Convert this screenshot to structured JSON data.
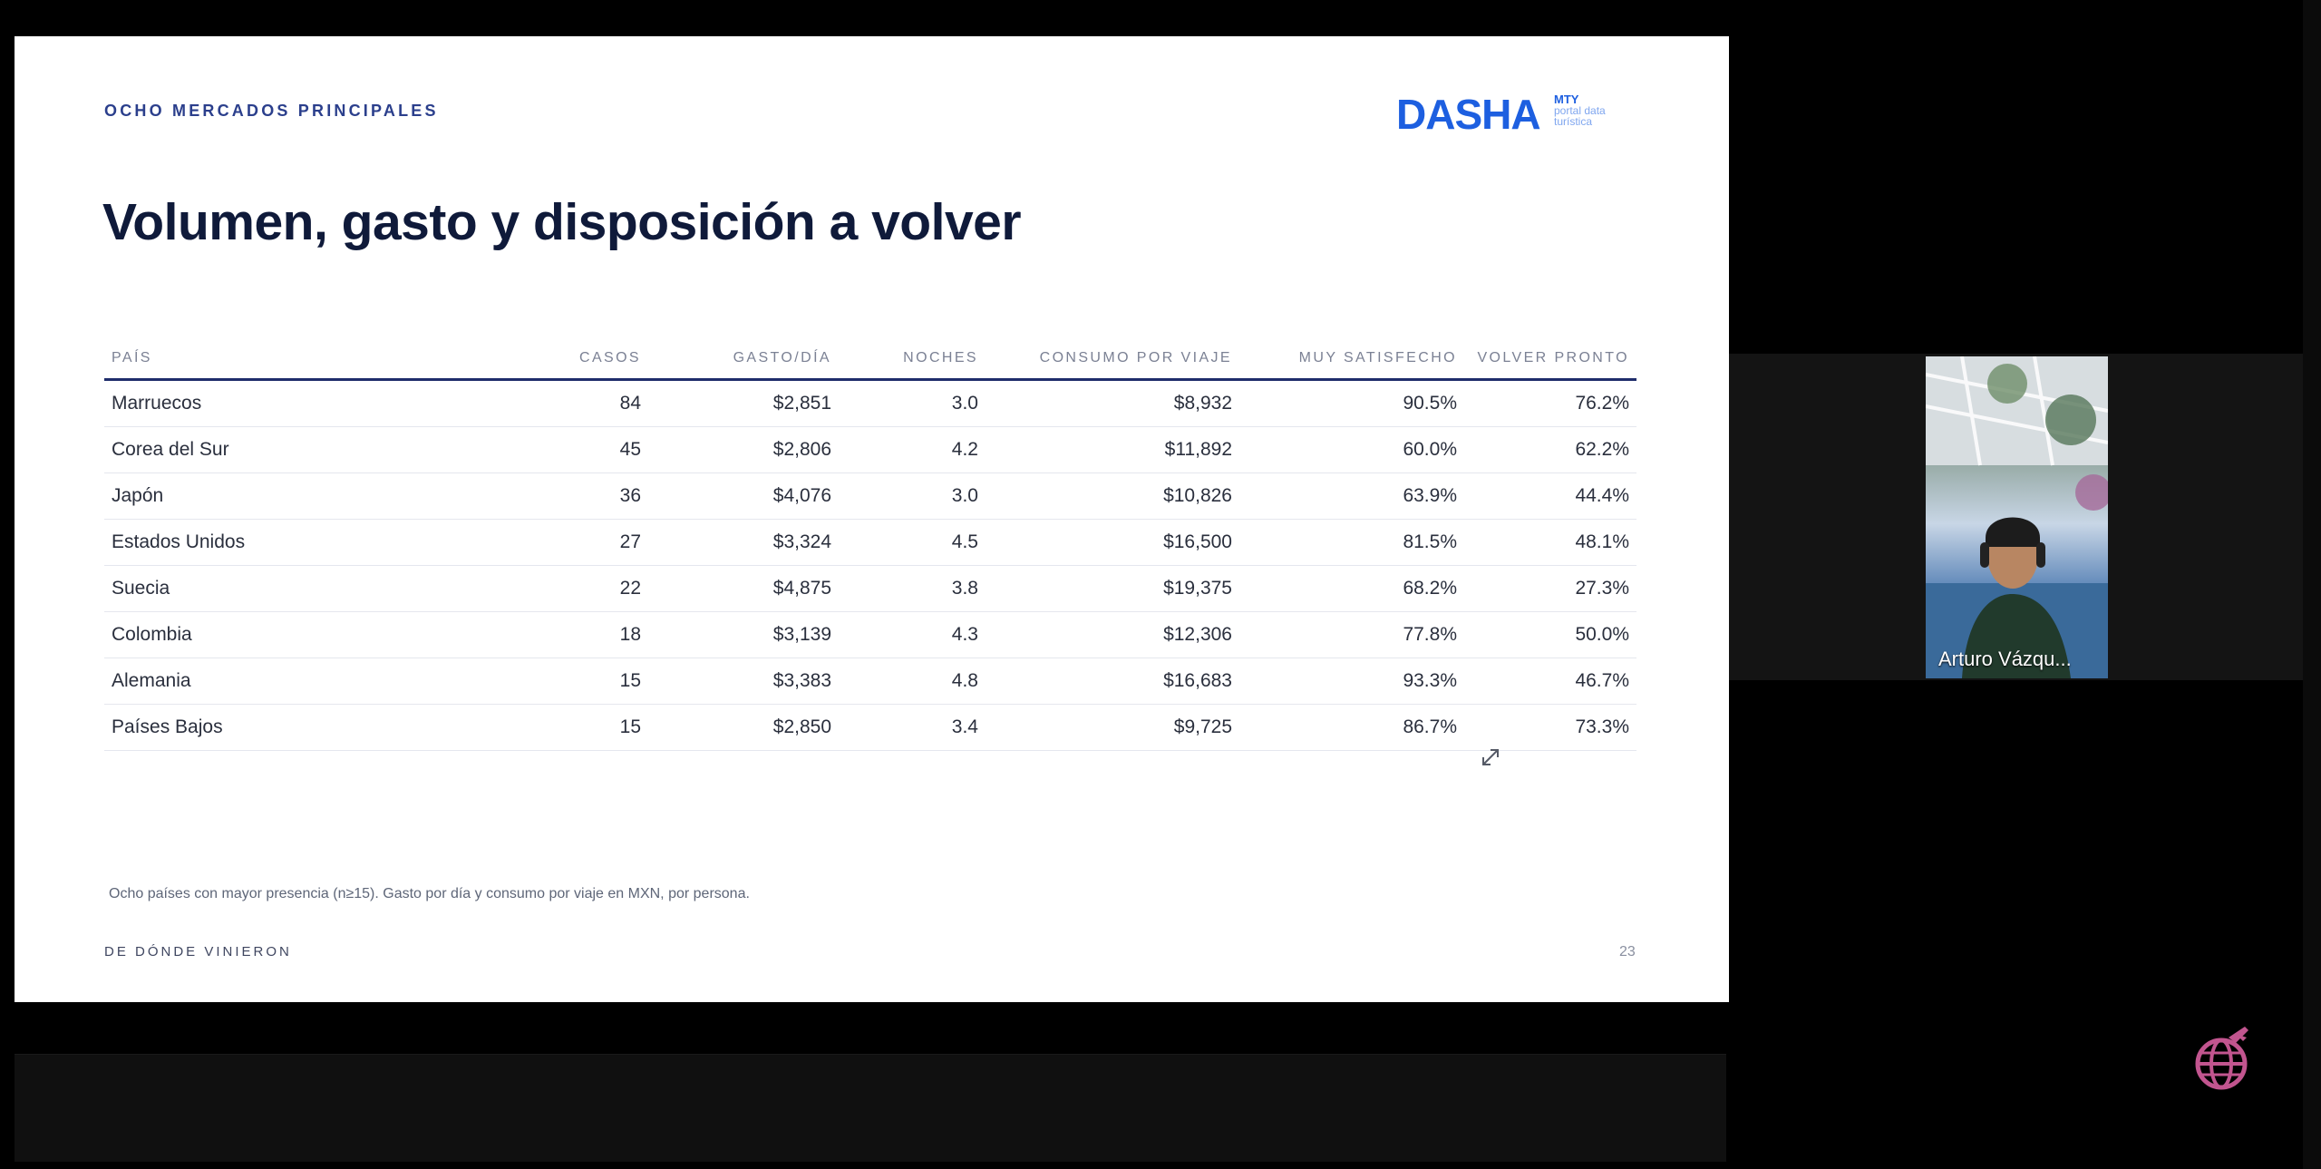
{
  "slide": {
    "kicker": "OCHO MERCADOS PRINCIPALES",
    "brand": {
      "name": "DASHA",
      "sub_top": "MTY",
      "tagline_line1": "portal data",
      "tagline_line2": "turística",
      "color": "#1d5fe0"
    },
    "title": "Volumen, gasto y disposición a volver",
    "table": {
      "headers": [
        "PAÍS",
        "CASOS",
        "GASTO/DÍA",
        "NOCHES",
        "CONSUMO POR VIAJE",
        "MUY SATISFECHO",
        "VOLVER PRONTO"
      ],
      "rows": [
        [
          "Marruecos",
          "84",
          "$2,851",
          "3.0",
          "$8,932",
          "90.5%",
          "76.2%"
        ],
        [
          "Corea del Sur",
          "45",
          "$2,806",
          "4.2",
          "$11,892",
          "60.0%",
          "62.2%"
        ],
        [
          "Japón",
          "36",
          "$4,076",
          "3.0",
          "$10,826",
          "63.9%",
          "44.4%"
        ],
        [
          "Estados Unidos",
          "27",
          "$3,324",
          "4.5",
          "$16,500",
          "81.5%",
          "48.1%"
        ],
        [
          "Suecia",
          "22",
          "$4,875",
          "3.8",
          "$19,375",
          "68.2%",
          "27.3%"
        ],
        [
          "Colombia",
          "18",
          "$3,139",
          "4.3",
          "$12,306",
          "77.8%",
          "50.0%"
        ],
        [
          "Alemania",
          "15",
          "$3,383",
          "4.8",
          "$16,683",
          "93.3%",
          "46.7%"
        ],
        [
          "Países Bajos",
          "15",
          "$2,850",
          "3.4",
          "$9,725",
          "86.7%",
          "73.3%"
        ]
      ]
    },
    "footnote": "Ocho países con mayor presencia (n≥15). Gasto por día y consumo por viaje en MXN, por persona.",
    "footer_section": "DE DÓNDE VINIERON",
    "page_number": "23",
    "expand_icon": "expand-icon"
  },
  "participant": {
    "name": "Arturo Vázqu..."
  },
  "app_logo_icon": "globe-plane-icon",
  "colors": {
    "title": "#0f1a3a",
    "accent_rule": "#1f2d6b",
    "logo_pink": "#c2558f"
  }
}
